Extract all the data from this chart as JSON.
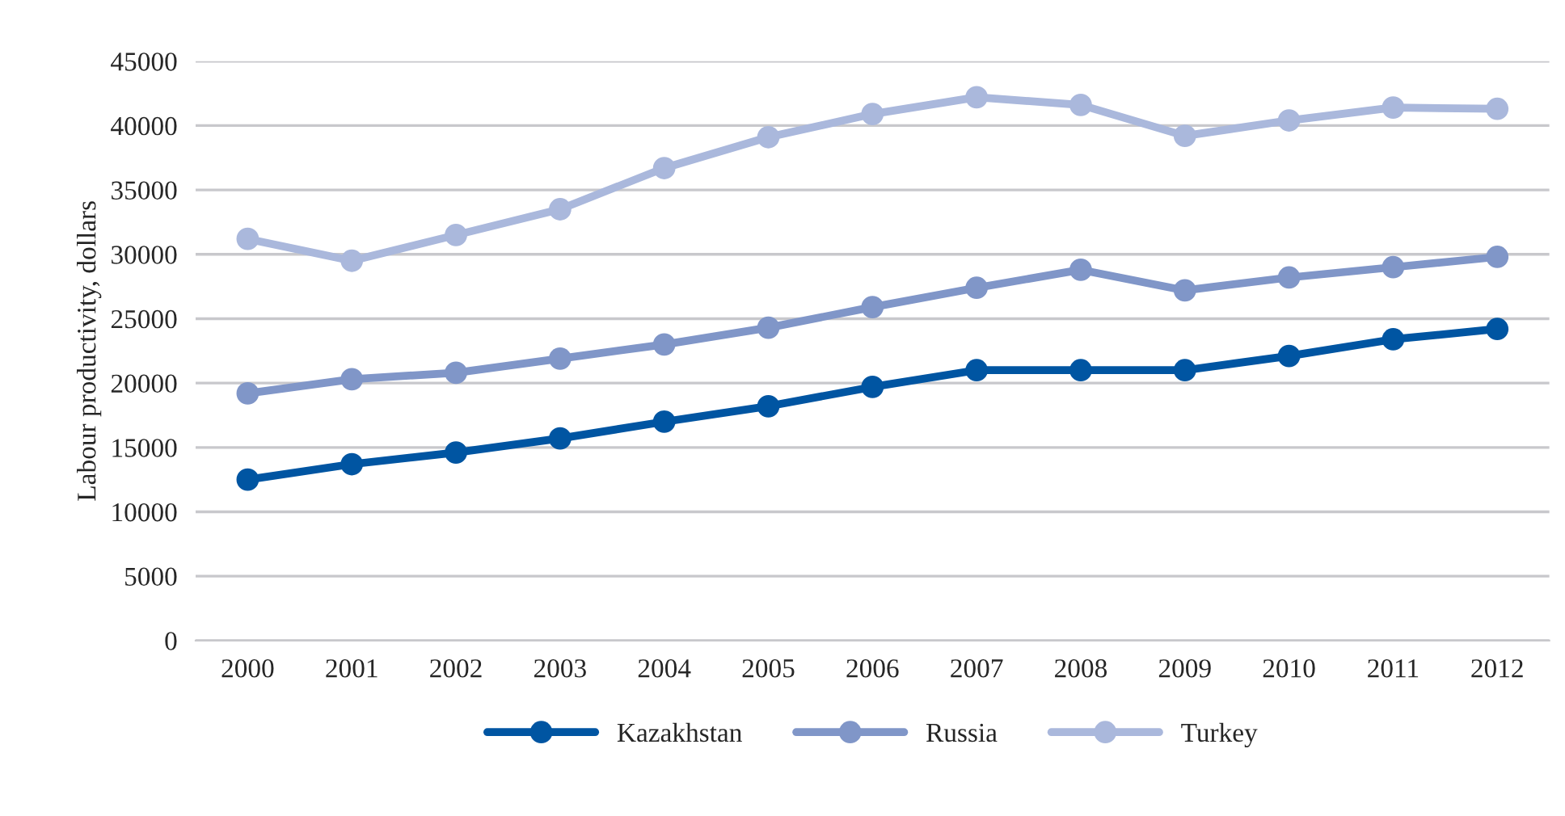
{
  "chart_data": {
    "type": "line",
    "ylabel": "Labour productivity, dollars",
    "categories": [
      "2000",
      "2001",
      "2002",
      "2003",
      "2004",
      "2005",
      "2006",
      "2007",
      "2008",
      "2009",
      "2010",
      "2011",
      "2012"
    ],
    "series": [
      {
        "name": "Kazakhstan",
        "color": "#0055a2",
        "values": [
          12500,
          13700,
          14600,
          15700,
          17000,
          18200,
          19700,
          21000,
          21000,
          21000,
          22100,
          23400,
          24200
        ]
      },
      {
        "name": "Russia",
        "color": "#8096c8",
        "values": [
          19200,
          20300,
          20800,
          21900,
          23000,
          24300,
          25900,
          27400,
          28800,
          27200,
          28200,
          29000,
          29800
        ]
      },
      {
        "name": "Turkey",
        "color": "#aab8dc",
        "values": [
          31200,
          29500,
          31500,
          33500,
          36700,
          39100,
          40900,
          42200,
          41600,
          39200,
          40400,
          41400,
          41300
        ]
      }
    ],
    "ylim": [
      0,
      45000
    ],
    "yticks": [
      0,
      5000,
      10000,
      15000,
      20000,
      25000,
      30000,
      35000,
      40000,
      45000
    ],
    "grid": "y",
    "legend": "bottom",
    "marker": "circle",
    "line_style": "solid"
  }
}
